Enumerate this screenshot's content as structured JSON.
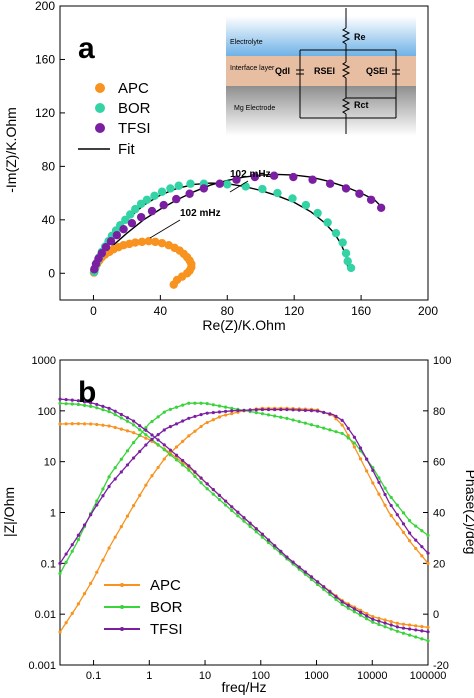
{
  "colors": {
    "APC": "#f7931e",
    "BOR": "#33d3a6",
    "BOR_b": "#39d43b",
    "TFSI": "#7b1fa2",
    "fit": "#000000",
    "electrolyte": "#6fb2e6",
    "interface": "#e8bea3",
    "electrode": "#a5a5a5"
  },
  "chart_data": [
    {
      "type": "scatter",
      "panel_label": "a",
      "xlabel": "Re(Z)/K.Ohm",
      "ylabel": "-Im(Z)/K.Ohm",
      "xlim": [
        -20,
        200
      ],
      "ylim": [
        -20,
        200
      ],
      "xticks": [
        0,
        40,
        80,
        120,
        160,
        200
      ],
      "yticks": [
        0,
        40,
        80,
        120,
        160,
        200
      ],
      "legend": {
        "position": "top-left",
        "entries": [
          "APC",
          "BOR",
          "TFSI",
          "Fit"
        ]
      },
      "annotations": [
        "102 mHz",
        "102 mHz"
      ],
      "series": [
        {
          "name": "APC",
          "points": [
            [
              0.3,
              0.5
            ],
            [
              0.6,
              2
            ],
            [
              1.2,
              4.5
            ],
            [
              2.2,
              7
            ],
            [
              3.5,
              9.5
            ],
            [
              5,
              12
            ],
            [
              7,
              14
            ],
            [
              9.5,
              16
            ],
            [
              12,
              18
            ],
            [
              15,
              19.5
            ],
            [
              18,
              21
            ],
            [
              21.5,
              22
            ],
            [
              25,
              23
            ],
            [
              29,
              23.5
            ],
            [
              33,
              24
            ],
            [
              37,
              23.5
            ],
            [
              41,
              22.5
            ],
            [
              45,
              21
            ],
            [
              48.5,
              19
            ],
            [
              51.5,
              17
            ],
            [
              54,
              14.5
            ],
            [
              56,
              12
            ],
            [
              57.5,
              9.5
            ],
            [
              58.5,
              7
            ],
            [
              58.5,
              4.5
            ],
            [
              57.5,
              2
            ],
            [
              56,
              0
            ],
            [
              53,
              -2.5
            ],
            [
              50,
              -5
            ],
            [
              48,
              -8.5
            ]
          ]
        },
        {
          "name": "BOR",
          "points": [
            [
              0.5,
              1
            ],
            [
              1,
              4
            ],
            [
              2,
              8
            ],
            [
              3.5,
              12
            ],
            [
              5,
              16
            ],
            [
              7,
              20
            ],
            [
              9,
              24
            ],
            [
              11,
              28
            ],
            [
              13.5,
              32
            ],
            [
              16,
              36
            ],
            [
              19,
              40
            ],
            [
              22,
              44
            ],
            [
              25,
              48
            ],
            [
              28.5,
              52
            ],
            [
              32,
              55
            ],
            [
              36.5,
              58
            ],
            [
              41,
              61
            ],
            [
              46,
              63.5
            ],
            [
              51,
              65.5
            ],
            [
              58,
              67
            ],
            [
              66,
              67
            ],
            [
              80,
              66.5
            ],
            [
              91,
              65
            ],
            [
              101,
              63
            ],
            [
              110,
              60
            ],
            [
              119,
              56
            ],
            [
              127,
              51
            ],
            [
              134,
              45
            ],
            [
              140,
              38
            ],
            [
              145,
              30
            ],
            [
              149,
              23
            ],
            [
              151,
              15
            ],
            [
              152,
              9
            ],
            [
              154,
              4
            ]
          ]
        },
        {
          "name": "TFSI",
          "points": [
            [
              0.5,
              3
            ],
            [
              1.5,
              7
            ],
            [
              3,
              11
            ],
            [
              5,
              15
            ],
            [
              7.5,
              19.5
            ],
            [
              10.5,
              24
            ],
            [
              14,
              28.5
            ],
            [
              18,
              33
            ],
            [
              23,
              37.5
            ],
            [
              28.5,
              42
            ],
            [
              35,
              46.5
            ],
            [
              42,
              51
            ],
            [
              49.5,
              55.5
            ],
            [
              57.5,
              59.5
            ],
            [
              66,
              63.5
            ],
            [
              75.5,
              67
            ],
            [
              85.5,
              70
            ],
            [
              96.5,
              72
            ],
            [
              108,
              73
            ],
            [
              119.5,
              72
            ],
            [
              131,
              70
            ],
            [
              141.5,
              67
            ],
            [
              151,
              63.5
            ],
            [
              159,
              59.5
            ],
            [
              166,
              55
            ],
            [
              172,
              49
            ]
          ]
        }
      ],
      "fits": [
        {
          "name": "APC",
          "points": [
            [
              0,
              0
            ],
            [
              2,
              6
            ],
            [
              5,
              11
            ],
            [
              10,
              16
            ],
            [
              15,
              19.5
            ],
            [
              20,
              21.5
            ],
            [
              25,
              23
            ],
            [
              30,
              23.5
            ],
            [
              35,
              23.5
            ],
            [
              40,
              23
            ],
            [
              45,
              21.5
            ],
            [
              50,
              18
            ],
            [
              54,
              13
            ],
            [
              57,
              8
            ],
            [
              58,
              3.5
            ]
          ]
        },
        {
          "name": "BOR",
          "points": [
            [
              0,
              0
            ],
            [
              2,
              8
            ],
            [
              6,
              18
            ],
            [
              12,
              29
            ],
            [
              20,
              40
            ],
            [
              30,
              51
            ],
            [
              40,
              58.5
            ],
            [
              50,
              63.5
            ],
            [
              60,
              66.5
            ],
            [
              70,
              67.5
            ],
            [
              80,
              67
            ],
            [
              90,
              65
            ],
            [
              100,
              62
            ],
            [
              110,
              58
            ],
            [
              120,
              53
            ],
            [
              130,
              46
            ],
            [
              138,
              38
            ],
            [
              144,
              30
            ],
            [
              148,
              22
            ],
            [
              151,
              13
            ],
            [
              152,
              5
            ]
          ]
        },
        {
          "name": "TFSI",
          "points": [
            [
              0,
              0
            ],
            [
              5,
              12
            ],
            [
              10,
              19
            ],
            [
              20,
              30
            ],
            [
              30,
              40
            ],
            [
              40,
              48
            ],
            [
              50,
              55
            ],
            [
              60,
              61
            ],
            [
              70,
              66
            ],
            [
              80,
              69.5
            ],
            [
              90,
              72
            ],
            [
              100,
              73.5
            ],
            [
              110,
              74
            ],
            [
              120,
              73.5
            ],
            [
              130,
              72
            ],
            [
              140,
              69
            ],
            [
              150,
              65
            ],
            [
              160,
              60
            ],
            [
              168,
              55
            ],
            [
              172,
              50
            ]
          ]
        }
      ],
      "inset": {
        "layers": [
          "Electrolyte",
          "Interface layer",
          "Mg Electrode"
        ],
        "labels": [
          "Re",
          "Qdl",
          "RSEI",
          "QSEI",
          "Rct"
        ]
      }
    },
    {
      "type": "line",
      "panel_label": "b",
      "xlabel": "freq/Hz",
      "ylabel": "|Z|/Ohm",
      "y2label": "Phase(Z)/deg",
      "xscale": "log",
      "yscale": "log",
      "xlim": [
        0.025,
        100000
      ],
      "ylim": [
        0.001,
        1000
      ],
      "y2lim": [
        -20,
        100
      ],
      "xticks": [
        "0.1",
        "1",
        "10",
        "100",
        "1000",
        "10000",
        "100000"
      ],
      "yticks": [
        "0.001",
        "0.01",
        "0.1",
        "1",
        "10",
        "100",
        "1000"
      ],
      "y2ticks": [
        "-20",
        "0",
        "20",
        "40",
        "60",
        "80",
        "100"
      ],
      "legend": {
        "position": "bottom-left",
        "entries": [
          "APC",
          "BOR",
          "TFSI"
        ]
      },
      "series": [
        {
          "name": "APC",
          "magnitude": [
            [
              0.025,
              55
            ],
            [
              0.05,
              56
            ],
            [
              0.1,
              55
            ],
            [
              0.2,
              50
            ],
            [
              0.5,
              38
            ],
            [
              1,
              27
            ],
            [
              2,
              17
            ],
            [
              5,
              8
            ],
            [
              10,
              4
            ],
            [
              30,
              1.3
            ],
            [
              100,
              0.4
            ],
            [
              300,
              0.13
            ],
            [
              1000,
              0.045
            ],
            [
              3000,
              0.018
            ],
            [
              10000,
              0.009
            ],
            [
              30000,
              0.0065
            ],
            [
              100000,
              0.0055
            ]
          ],
          "phase": [
            [
              0.025,
              -7
            ],
            [
              0.05,
              3
            ],
            [
              0.1,
              14
            ],
            [
              0.2,
              27
            ],
            [
              0.5,
              42
            ],
            [
              1,
              53
            ],
            [
              2,
              62
            ],
            [
              5,
              70
            ],
            [
              10,
              75
            ],
            [
              20,
              78
            ],
            [
              50,
              80
            ],
            [
              100,
              81
            ],
            [
              300,
              81
            ],
            [
              1000,
              80.5
            ],
            [
              2000,
              78
            ],
            [
              3000,
              74
            ],
            [
              5000,
              65
            ],
            [
              10000,
              52
            ],
            [
              20000,
              40
            ],
            [
              50000,
              28
            ],
            [
              100000,
              20
            ]
          ]
        },
        {
          "name": "BOR",
          "magnitude": [
            [
              0.025,
              140
            ],
            [
              0.05,
              135
            ],
            [
              0.1,
              120
            ],
            [
              0.2,
              95
            ],
            [
              0.5,
              55
            ],
            [
              1,
              30
            ],
            [
              2,
              16
            ],
            [
              5,
              7
            ],
            [
              10,
              3.2
            ],
            [
              30,
              1.1
            ],
            [
              100,
              0.35
            ],
            [
              300,
              0.12
            ],
            [
              1000,
              0.04
            ],
            [
              3000,
              0.015
            ],
            [
              10000,
              0.007
            ],
            [
              30000,
              0.0045
            ],
            [
              100000,
              0.003
            ]
          ],
          "phase": [
            [
              0.025,
              16
            ],
            [
              0.05,
              28
            ],
            [
              0.1,
              42
            ],
            [
              0.2,
              55
            ],
            [
              0.5,
              67
            ],
            [
              1,
              75
            ],
            [
              2,
              80
            ],
            [
              5,
              83
            ],
            [
              10,
              83
            ],
            [
              30,
              81
            ],
            [
              100,
              79
            ],
            [
              300,
              77
            ],
            [
              1000,
              74
            ],
            [
              3000,
              71
            ],
            [
              5000,
              67
            ],
            [
              10000,
              58
            ],
            [
              20000,
              47
            ],
            [
              50000,
              36
            ],
            [
              100000,
              31
            ]
          ]
        },
        {
          "name": "TFSI",
          "magnitude": [
            [
              0.025,
              170
            ],
            [
              0.05,
              160
            ],
            [
              0.1,
              140
            ],
            [
              0.2,
              110
            ],
            [
              0.5,
              65
            ],
            [
              1,
              37
            ],
            [
              2,
              20
            ],
            [
              5,
              8.5
            ],
            [
              10,
              4
            ],
            [
              30,
              1.3
            ],
            [
              100,
              0.4
            ],
            [
              300,
              0.13
            ],
            [
              1000,
              0.045
            ],
            [
              3000,
              0.017
            ],
            [
              10000,
              0.008
            ],
            [
              30000,
              0.0055
            ],
            [
              100000,
              0.0045
            ]
          ],
          "phase": [
            [
              0.025,
              20
            ],
            [
              0.05,
              30
            ],
            [
              0.1,
              41
            ],
            [
              0.2,
              51
            ],
            [
              0.5,
              61
            ],
            [
              1,
              68
            ],
            [
              2,
              73
            ],
            [
              5,
              77
            ],
            [
              10,
              79
            ],
            [
              30,
              80
            ],
            [
              100,
              80.5
            ],
            [
              300,
              80.5
            ],
            [
              1000,
              80
            ],
            [
              2000,
              78.5
            ],
            [
              3000,
              76
            ],
            [
              5000,
              69
            ],
            [
              10000,
              57
            ],
            [
              20000,
              44
            ],
            [
              50000,
              31
            ],
            [
              100000,
              24
            ]
          ]
        }
      ]
    }
  ]
}
